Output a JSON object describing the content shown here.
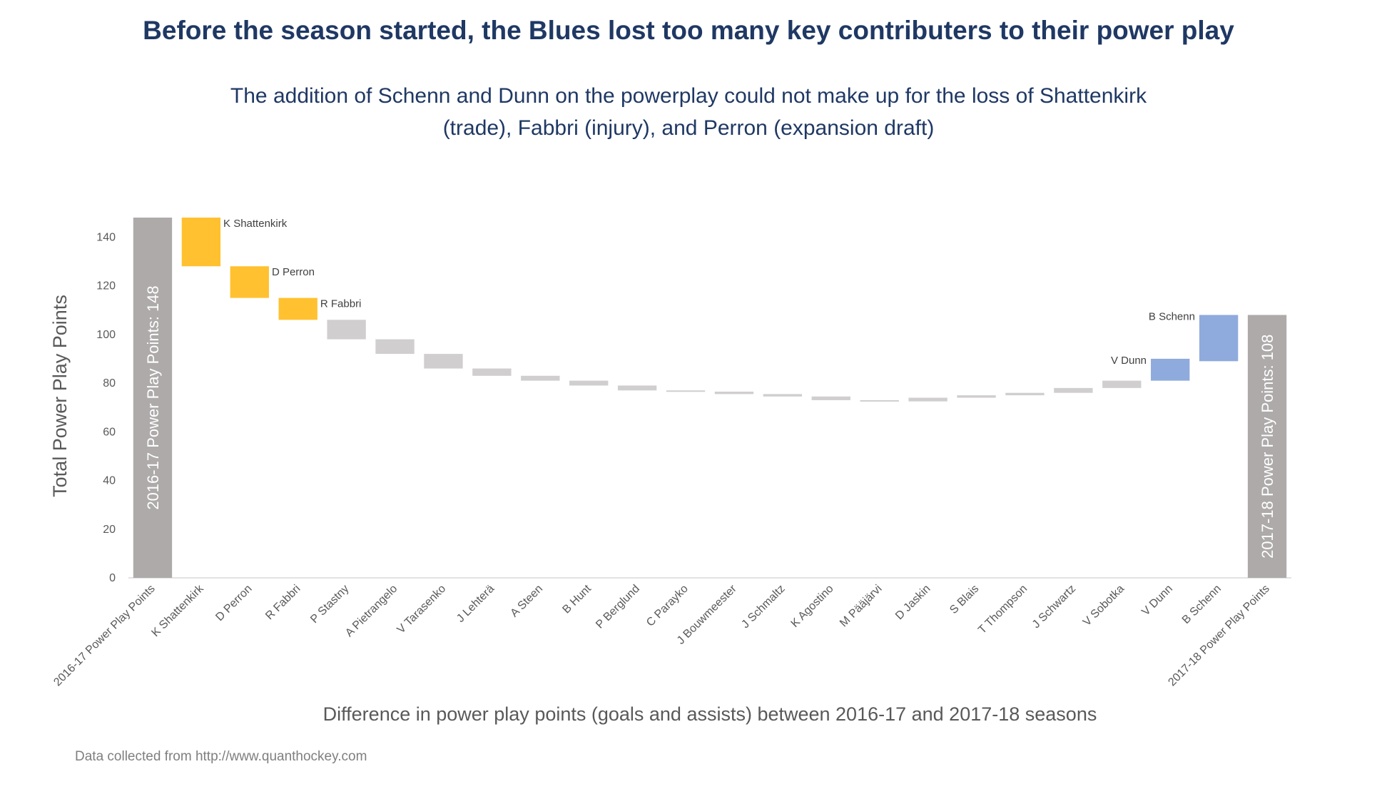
{
  "title": "Before the season started, the Blues lost too many key contributers to their power play",
  "subtitle_line1": "The addition of Schenn and Dunn on the powerplay could not make up for the loss of Shattenkirk",
  "subtitle_line2": "(trade), Fabbri (injury), and Perron (expansion draft)",
  "source": "Data collected from http://www.quanthockey.com",
  "colors": {
    "total": "#aeaaaa",
    "key_loss": "#ffc12f",
    "minor_change": "#d0cece",
    "gain": "#8faadc",
    "title": "#1f3864",
    "axis_text": "#595959"
  },
  "chart_data": {
    "type": "waterfall",
    "ylabel": "Total Power Play Points",
    "xlabel": "Difference in power play points (goals and assists) between 2016-17 and 2017-18 seasons",
    "ylim": [
      0,
      148
    ],
    "yticks": [
      0,
      20,
      40,
      60,
      80,
      100,
      120,
      140
    ],
    "bars": [
      {
        "category": "2016-17 Power Play Points",
        "start": 0,
        "end": 148,
        "kind": "total",
        "label": "2016-17 Power Play Points:  148"
      },
      {
        "category": "K Shattenkirk",
        "start": 148,
        "end": 128,
        "kind": "key_loss",
        "label": "K Shattenkirk"
      },
      {
        "category": "D Perron",
        "start": 128,
        "end": 115,
        "kind": "key_loss",
        "label": "D Perron"
      },
      {
        "category": "R Fabbri",
        "start": 115,
        "end": 106,
        "kind": "key_loss",
        "label": "R Fabbri"
      },
      {
        "category": "P Stastny",
        "start": 106,
        "end": 98,
        "kind": "minor_change"
      },
      {
        "category": "A Pietrangelo",
        "start": 98,
        "end": 92,
        "kind": "minor_change"
      },
      {
        "category": "V Tarasenko",
        "start": 92,
        "end": 86,
        "kind": "minor_change"
      },
      {
        "category": "J Lehterä",
        "start": 86,
        "end": 83,
        "kind": "minor_change"
      },
      {
        "category": "A Steen",
        "start": 83,
        "end": 81,
        "kind": "minor_change"
      },
      {
        "category": "B Hunt",
        "start": 81,
        "end": 79,
        "kind": "minor_change"
      },
      {
        "category": "P Berglund",
        "start": 79,
        "end": 77,
        "kind": "minor_change"
      },
      {
        "category": "C Parayko",
        "start": 77,
        "end": 76.5,
        "kind": "minor_change"
      },
      {
        "category": "J Bouwmeester",
        "start": 76.5,
        "end": 75.5,
        "kind": "minor_change"
      },
      {
        "category": "J Schmaltz",
        "start": 75.5,
        "end": 74.5,
        "kind": "minor_change"
      },
      {
        "category": "K Agostino",
        "start": 74.5,
        "end": 73,
        "kind": "minor_change"
      },
      {
        "category": "M Pääjärvi",
        "start": 73,
        "end": 72.5,
        "kind": "minor_change"
      },
      {
        "category": "D Jaskin",
        "start": 72.5,
        "end": 74,
        "kind": "minor_change"
      },
      {
        "category": "S Blais",
        "start": 74,
        "end": 75,
        "kind": "minor_change"
      },
      {
        "category": "T Thompson",
        "start": 75,
        "end": 76,
        "kind": "minor_change"
      },
      {
        "category": "J Schwartz",
        "start": 76,
        "end": 78,
        "kind": "minor_change"
      },
      {
        "category": "V Sobotka",
        "start": 78,
        "end": 81,
        "kind": "minor_change"
      },
      {
        "category": "V Dunn",
        "start": 81,
        "end": 90,
        "kind": "gain",
        "label": "V Dunn"
      },
      {
        "category": "B Schenn",
        "start": 89,
        "end": 108,
        "kind": "gain",
        "label": "B Schenn"
      },
      {
        "category": "2017-18 Power Play Points",
        "start": 0,
        "end": 108,
        "kind": "total",
        "label": "2017-18 Power Play Points:  108"
      }
    ]
  }
}
